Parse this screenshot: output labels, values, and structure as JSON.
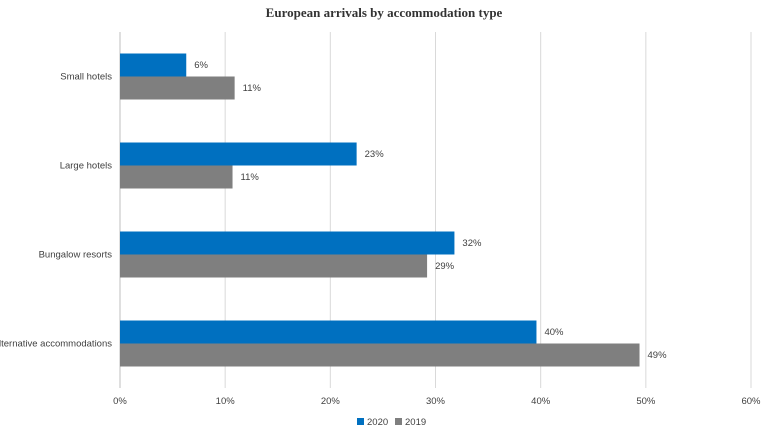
{
  "chart_data": {
    "type": "bar",
    "orientation": "horizontal",
    "title": "European arrivals by accommodation type",
    "categories": [
      "Small hotels",
      "Large hotels",
      "Bungalow resorts",
      "Alternative accommodations"
    ],
    "series": [
      {
        "name": "2020",
        "values": [
          6,
          23,
          32,
          40
        ],
        "value_labels": [
          "6%",
          "23%",
          "32%",
          "40%"
        ],
        "color": "#0070c0"
      },
      {
        "name": "2019",
        "values": [
          11,
          11,
          29,
          49
        ],
        "value_labels": [
          "11%",
          "11%",
          "29%",
          "49%"
        ],
        "color": "#7f7f7f"
      }
    ],
    "bar_values_est": {
      "2020": [
        6.3,
        22.5,
        31.8,
        39.6
      ],
      "2019": [
        10.9,
        10.7,
        29.2,
        49.4
      ]
    },
    "xlim": [
      0,
      60
    ],
    "xticks": [
      0,
      10,
      20,
      30,
      40,
      50,
      60
    ],
    "xtick_labels": [
      "0%",
      "10%",
      "20%",
      "30%",
      "40%",
      "50%",
      "60%"
    ],
    "grid": true,
    "legend_position": "bottom"
  }
}
